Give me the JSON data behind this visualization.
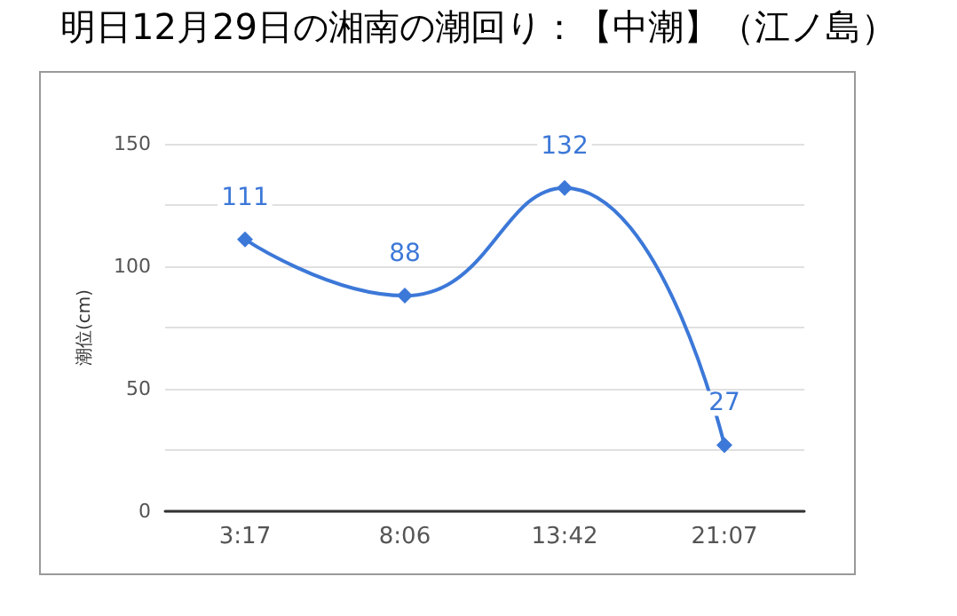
{
  "chart_data": {
    "type": "line",
    "title": "明日12月29日の湘南の潮回り：【中潮】（江ノ島）",
    "ylabel": "潮位(cm)",
    "categories": [
      "3:17",
      "8:06",
      "13:42",
      "21:07"
    ],
    "series": [
      {
        "color": "#3c78d8",
        "values": [
          111,
          88,
          132,
          27
        ]
      }
    ],
    "ylim": [
      0,
      150
    ],
    "yticks": [
      0,
      {
        "value": 25,
        "label": null
      },
      50,
      {
        "value": 75,
        "label": null
      },
      100,
      {
        "value": 125,
        "label": null
      },
      150
    ],
    "grid": "y",
    "marker": "diamond",
    "line_style": "solid",
    "data_labels": true
  }
}
